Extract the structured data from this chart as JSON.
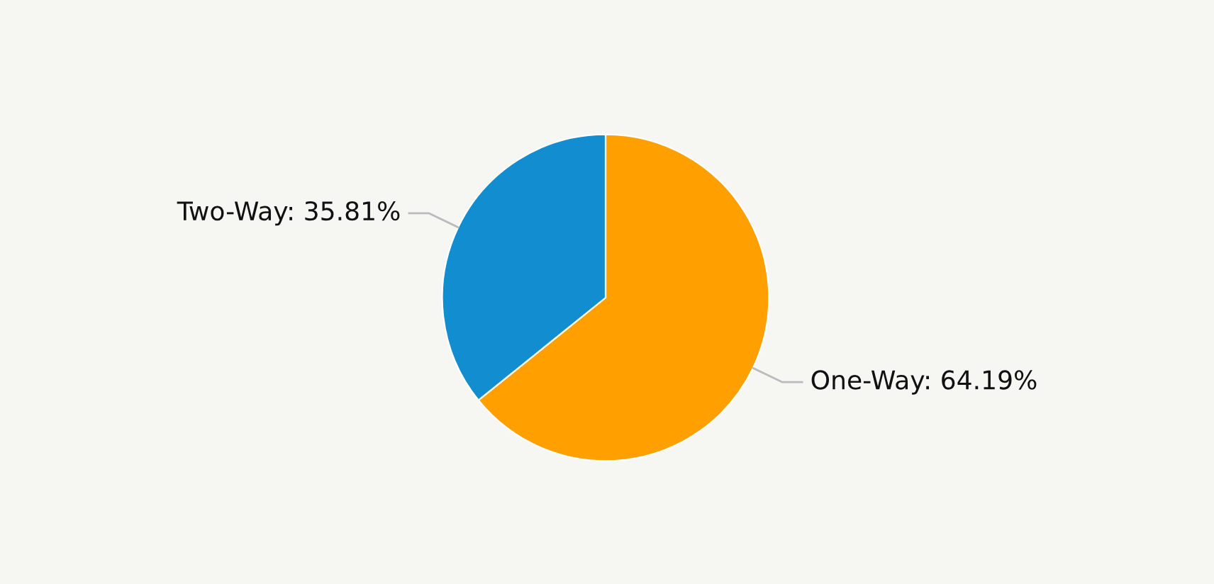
{
  "chart_data": {
    "type": "pie",
    "categories": [
      "One-Way",
      "Two-Way"
    ],
    "values": [
      64.19,
      35.81
    ],
    "colors": [
      "#ff9f00",
      "#118dd0"
    ],
    "value_labels": [
      "64.19%",
      "35.81%"
    ]
  }
}
